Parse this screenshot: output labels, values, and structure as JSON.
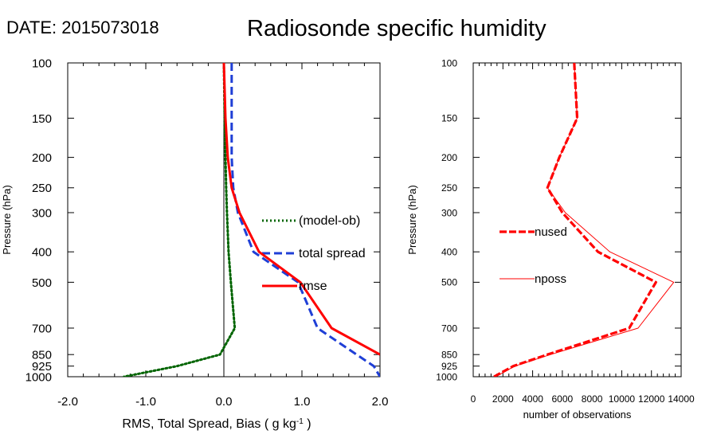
{
  "header": {
    "date": "DATE: 2015073018",
    "title": "Radiosonde specific humidity"
  },
  "chart_data": [
    {
      "type": "line",
      "panel": "left",
      "xlabel": "RMS, Total Spread, Bias ( g kg",
      "xlabel_sup": "-1",
      "xlabel_end": " )",
      "ylabel": "Pressure (hPa)",
      "xlim": [
        -2.0,
        2.0
      ],
      "ylim": [
        1000,
        100
      ],
      "yscale": "log",
      "y_ticks": [
        100,
        150,
        200,
        250,
        300,
        400,
        500,
        700,
        850,
        925,
        1000
      ],
      "y_tick_labels": [
        "100",
        "150",
        "200",
        "250",
        "300",
        "400",
        "500",
        "700",
        "850",
        "925",
        "1000"
      ],
      "x_ticks": [
        -2.0,
        -1.0,
        0.0,
        1.0,
        2.0
      ],
      "x_tick_labels": [
        "-2.0",
        "-1.0",
        "0.0",
        "1.0",
        "2.0"
      ],
      "x_minor_ticks": [
        -1.8,
        -1.6,
        -1.4,
        -1.2,
        -0.8,
        -0.6,
        -0.4,
        -0.2,
        0.2,
        0.4,
        0.6,
        0.8,
        1.2,
        1.4,
        1.6,
        1.8
      ],
      "reference_line_x": 0.0,
      "legend_position": "right-middle",
      "series": [
        {
          "name": "(model-ob)",
          "color": "#006400",
          "style": "dotted",
          "points": [
            [
              0.0,
              100
            ],
            [
              0.01,
              150
            ],
            [
              0.02,
              200
            ],
            [
              0.03,
              250
            ],
            [
              0.04,
              300
            ],
            [
              0.06,
              400
            ],
            [
              0.09,
              500
            ],
            [
              0.14,
              700
            ],
            [
              -0.05,
              850
            ],
            [
              -0.6,
              925
            ],
            [
              -1.28,
              1000
            ]
          ]
        },
        {
          "name": "total spread",
          "color": "#1f3fd6",
          "style": "dashed",
          "points": [
            [
              0.1,
              100
            ],
            [
              0.1,
              150
            ],
            [
              0.1,
              200
            ],
            [
              0.12,
              250
            ],
            [
              0.18,
              300
            ],
            [
              0.38,
              400
            ],
            [
              0.95,
              500
            ],
            [
              1.2,
              700
            ],
            [
              1.7,
              850
            ],
            [
              1.92,
              925
            ],
            [
              2.0,
              1000
            ]
          ]
        },
        {
          "name": "rmse",
          "color": "#ff0000",
          "style": "solid",
          "points": [
            [
              0.0,
              100
            ],
            [
              0.02,
              150
            ],
            [
              0.05,
              200
            ],
            [
              0.1,
              250
            ],
            [
              0.2,
              300
            ],
            [
              0.45,
              400
            ],
            [
              0.98,
              500
            ],
            [
              1.38,
              700
            ],
            [
              2.0,
              850
            ]
          ]
        }
      ]
    },
    {
      "type": "line",
      "panel": "right",
      "xlabel": "number of observations",
      "ylabel": "Pressure (hPa)",
      "xlim": [
        0,
        14000
      ],
      "ylim": [
        1000,
        100
      ],
      "yscale": "log",
      "y_ticks": [
        100,
        150,
        200,
        250,
        300,
        400,
        500,
        700,
        850,
        925,
        1000
      ],
      "y_tick_labels": [
        "100",
        "150",
        "200",
        "250",
        "300",
        "400",
        "500",
        "700",
        "850",
        "925",
        "1000"
      ],
      "x_ticks": [
        0,
        2000,
        4000,
        6000,
        8000,
        10000,
        12000,
        14000
      ],
      "x_tick_labels": [
        "0",
        "2000",
        "4000",
        "6000",
        "8000",
        "10000",
        "12000",
        "14000"
      ],
      "x_minor_ticks": [
        400,
        800,
        1200,
        1600,
        2400,
        2800,
        3200,
        3600,
        4400,
        4800,
        5200,
        5600,
        6400,
        6800,
        7200,
        7600,
        8400,
        8800,
        9200,
        9600,
        10400,
        10800,
        11200,
        11600,
        12400,
        12800,
        13200,
        13600
      ],
      "legend_position": "left-middle",
      "series": [
        {
          "name": "nused",
          "color": "#ff0000",
          "style": "thick-dashed",
          "points": [
            [
              6800,
              100
            ],
            [
              7000,
              150
            ],
            [
              5800,
              200
            ],
            [
              5000,
              250
            ],
            [
              6000,
              300
            ],
            [
              8400,
              400
            ],
            [
              12300,
              500
            ],
            [
              10500,
              700
            ],
            [
              5000,
              850
            ],
            [
              2700,
              925
            ],
            [
              1400,
              1000
            ]
          ]
        },
        {
          "name": "nposs",
          "color": "#ff0000",
          "style": "thin-solid",
          "points": [
            [
              6800,
              100
            ],
            [
              7000,
              150
            ],
            [
              5800,
              200
            ],
            [
              5000,
              250
            ],
            [
              6200,
              300
            ],
            [
              9200,
              400
            ],
            [
              13500,
              500
            ],
            [
              11100,
              700
            ],
            [
              5200,
              850
            ],
            [
              2800,
              925
            ],
            [
              1500,
              1000
            ]
          ]
        }
      ]
    }
  ]
}
